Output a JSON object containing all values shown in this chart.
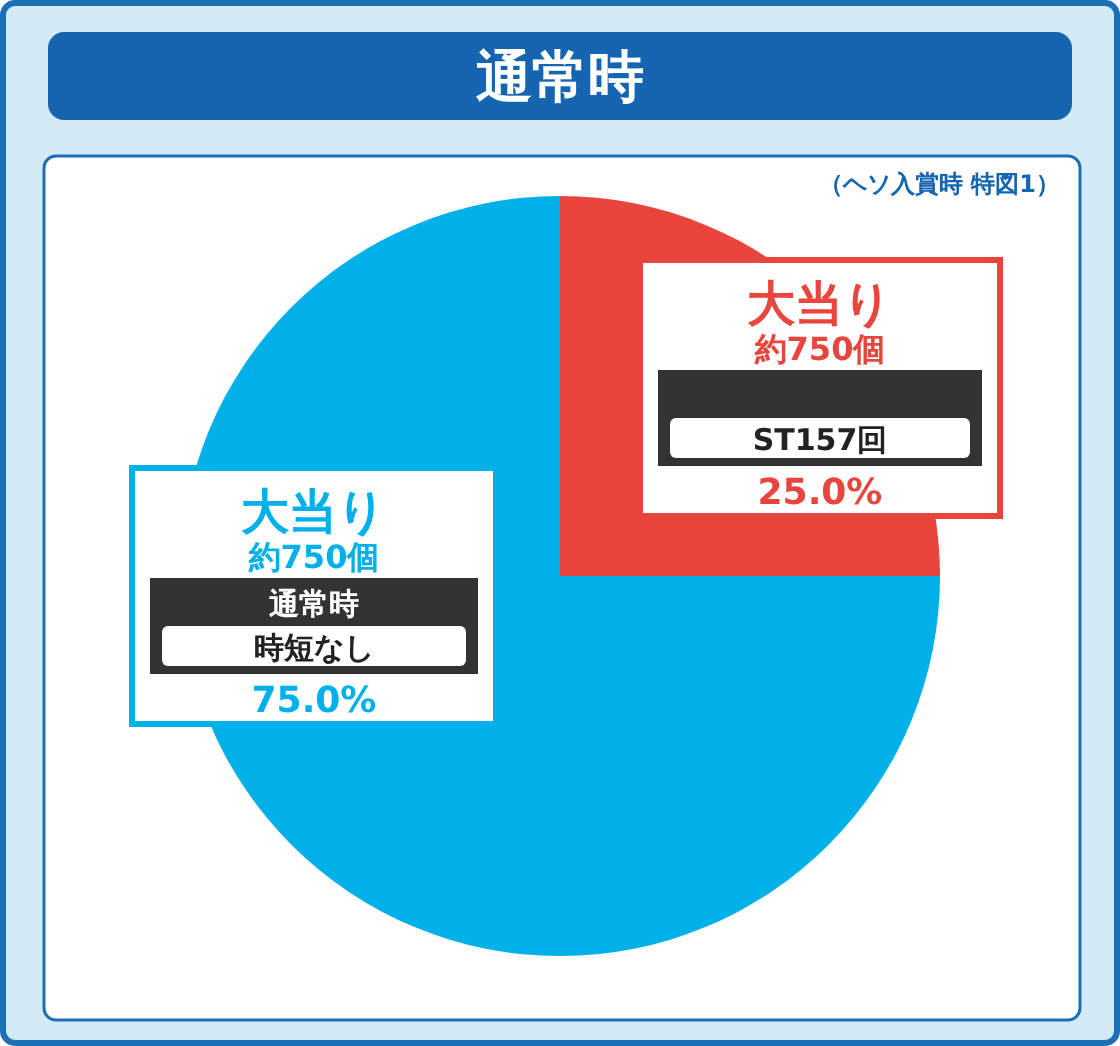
{
  "chart_data": {
    "type": "pie",
    "title": "通常時",
    "categories": [
      "大当り",
      "大当り"
    ],
    "values": [
      25,
      75
    ],
    "colors": [
      "#e8453c",
      "#00b0e8"
    ],
    "value_labels": [
      "25.0%",
      "75.0%"
    ],
    "annotations": [
      "（ヘソ入賞時 特図1）",
      "約750個",
      "ST157回",
      "約750個",
      "通常時",
      "時短なし"
    ]
  }
}
